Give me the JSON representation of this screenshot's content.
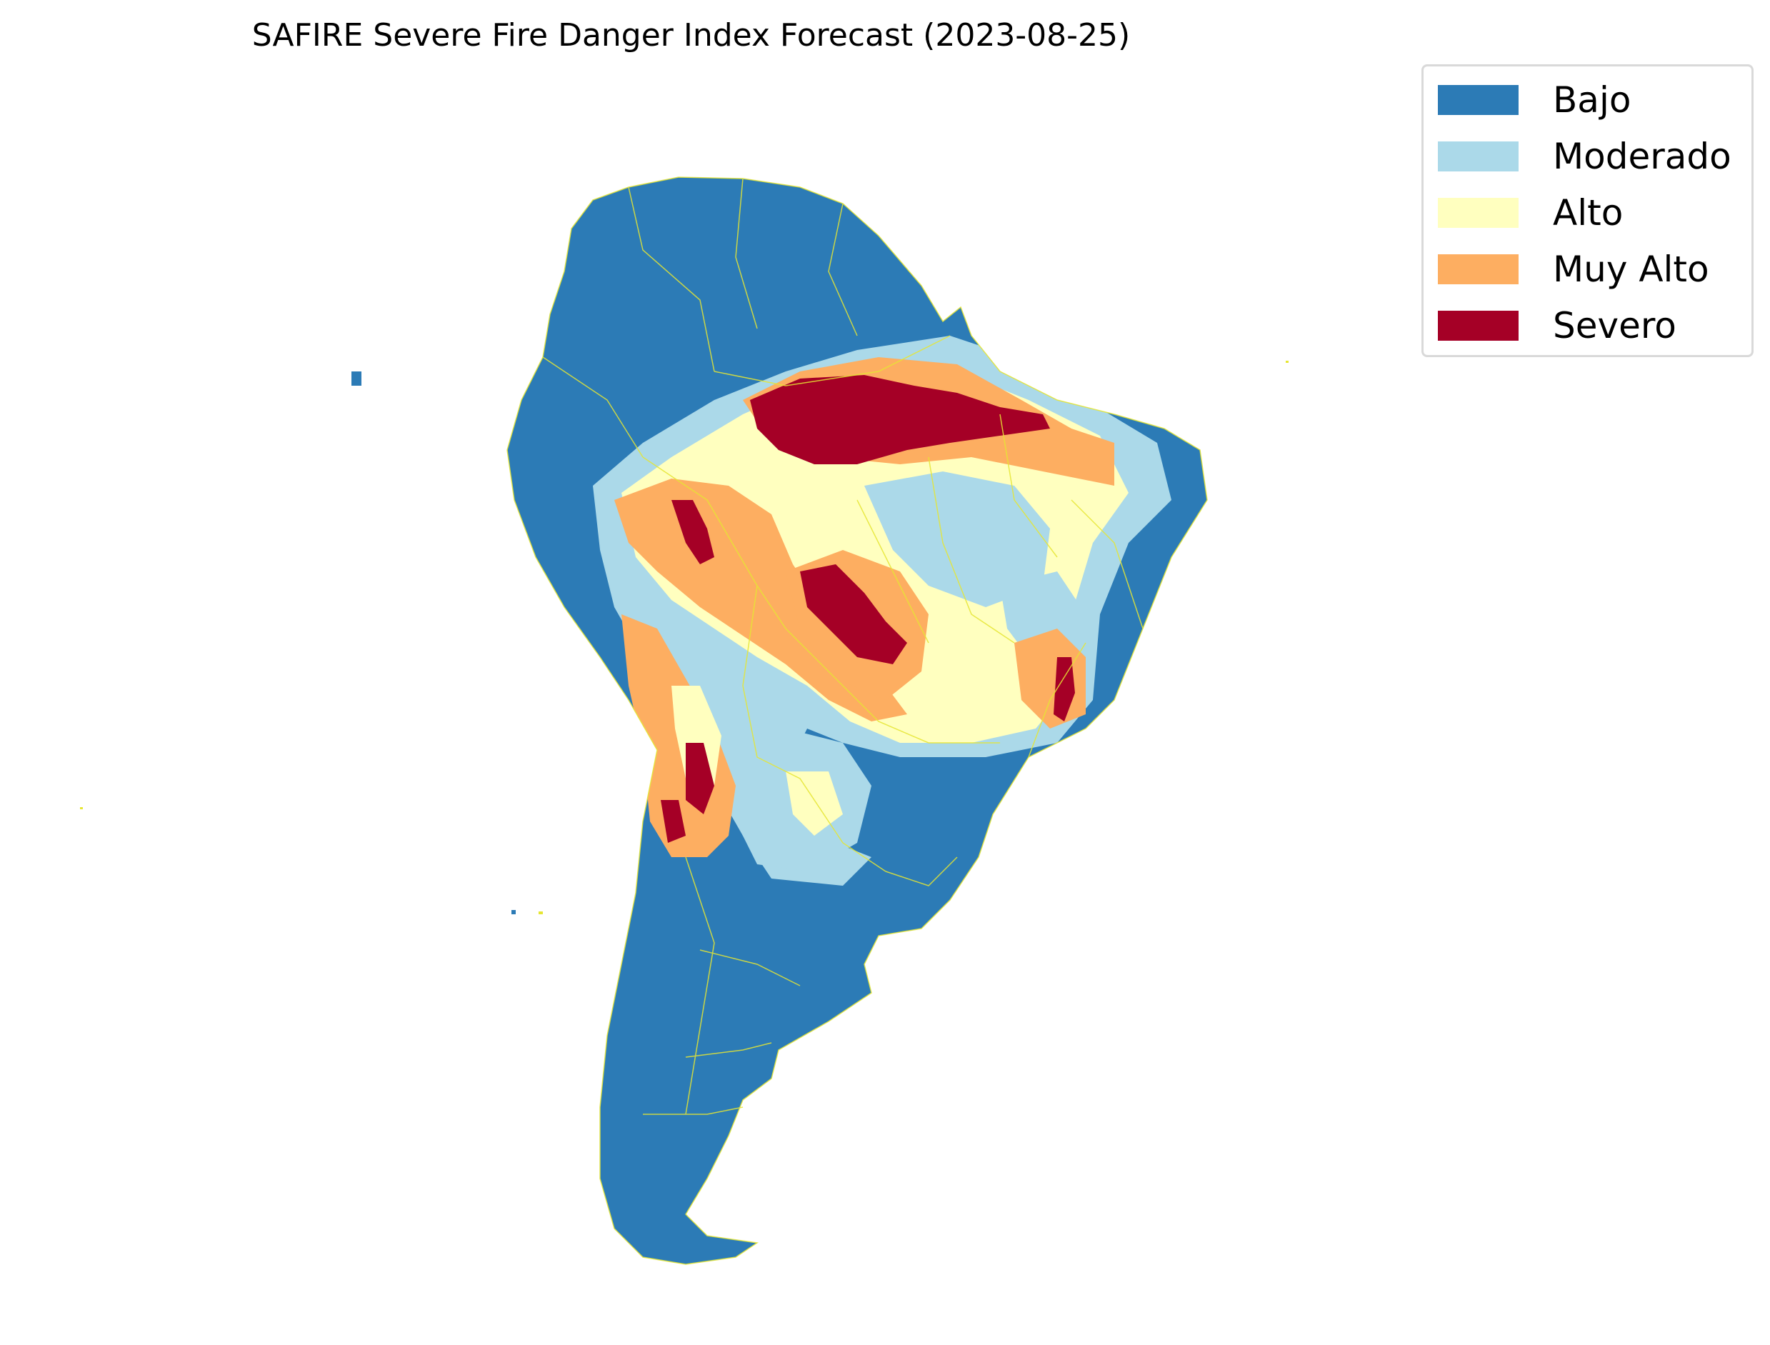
{
  "title": "SAFIRE Severe Fire Danger Index Forecast (2023-08-25)",
  "legend": {
    "placement": "top-right",
    "items": [
      {
        "label": "Bajo",
        "color": "#2c7bb6"
      },
      {
        "label": "Moderado",
        "color": "#abd9e9"
      },
      {
        "label": "Alto",
        "color": "#ffffbf"
      },
      {
        "label": "Muy Alto",
        "color": "#fdae61"
      },
      {
        "label": "Severo",
        "color": "#a50026"
      }
    ]
  },
  "map": {
    "region": "South America",
    "boundary_color": "#e6e633",
    "categories": [
      "Bajo",
      "Moderado",
      "Alto",
      "Muy Alto",
      "Severo"
    ]
  }
}
